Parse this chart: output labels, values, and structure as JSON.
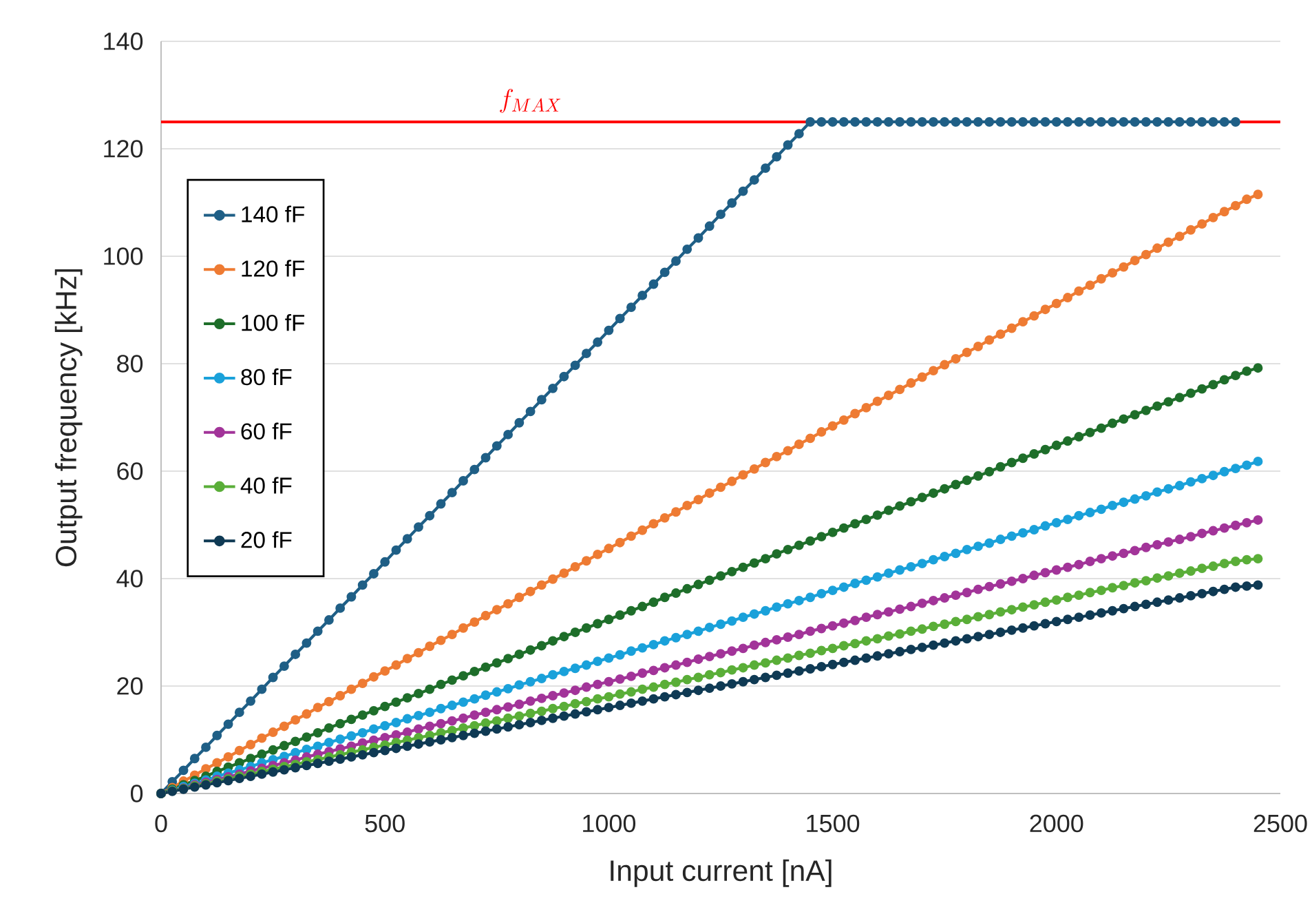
{
  "chart_data": {
    "type": "line",
    "xlabel": "Input current [nA]",
    "ylabel": "Output frequency [kHz]",
    "xlim": [
      0,
      2500
    ],
    "ylim": [
      0,
      140
    ],
    "xticks": [
      0,
      500,
      1000,
      1500,
      2000,
      2500
    ],
    "yticks": [
      0,
      20,
      40,
      60,
      80,
      100,
      120,
      140
    ],
    "grid": "y",
    "legend": "top left",
    "marker": "circle",
    "line_style": "solid",
    "ref_lines": [
      {
        "axis": "y",
        "value": 125,
        "label": "f_{MAX}",
        "color": "#ff0000"
      }
    ],
    "x": [
      0,
      25,
      50,
      75,
      100,
      125,
      150,
      175,
      200,
      225,
      250,
      275,
      300,
      325,
      350,
      375,
      400,
      425,
      450,
      475,
      500,
      525,
      550,
      575,
      600,
      625,
      650,
      675,
      700,
      725,
      750,
      775,
      800,
      825,
      850,
      875,
      900,
      925,
      950,
      975,
      1000,
      1025,
      1050,
      1075,
      1100,
      1125,
      1150,
      1175,
      1200,
      1225,
      1250,
      1275,
      1300,
      1325,
      1350,
      1375,
      1400,
      1425,
      1450,
      1475,
      1500,
      1525,
      1550,
      1575,
      1600,
      1625,
      1650,
      1675,
      1700,
      1725,
      1750,
      1775,
      1800,
      1825,
      1850,
      1875,
      1900,
      1925,
      1950,
      1975,
      2000,
      2025,
      2050,
      2075,
      2100,
      2125,
      2150,
      2175,
      2200,
      2225,
      2250,
      2275,
      2300,
      2325,
      2350,
      2375,
      2400,
      2425,
      2450
    ],
    "series": [
      {
        "name": "140 fF",
        "color": "#1f5f86",
        "x": [
          0,
          25,
          50,
          75,
          100,
          125,
          150,
          175,
          200,
          225,
          250,
          275,
          300,
          325,
          350,
          375,
          400,
          425,
          450,
          475,
          500,
          525,
          550,
          575,
          600,
          625,
          650,
          675,
          700,
          725,
          750,
          775,
          800,
          825,
          850,
          875,
          900,
          925,
          950,
          975,
          1000,
          1025,
          1050,
          1075,
          1100,
          1125,
          1150,
          1175,
          1200,
          1225,
          1250,
          1275,
          1300,
          1325,
          1350,
          1375,
          1400,
          1425,
          1450,
          1475,
          1500,
          1525,
          1550,
          1575,
          1600,
          1625,
          1650,
          1675,
          1700,
          1725,
          1750,
          1775,
          1800,
          1825,
          1850,
          1875,
          1900,
          1925,
          1950,
          1975,
          2000,
          2025,
          2050,
          2075,
          2100,
          2125,
          2150,
          2175,
          2200,
          2225,
          2250,
          2275,
          2300,
          2325,
          2350,
          2375,
          2400
        ],
        "values": [
          0,
          2.2,
          4.3,
          6.5,
          8.6,
          10.8,
          12.9,
          15.1,
          17.2,
          19.4,
          21.6,
          23.7,
          25.9,
          28.0,
          30.2,
          32.3,
          34.5,
          36.6,
          38.8,
          40.9,
          43.1,
          45.3,
          47.4,
          49.6,
          51.7,
          53.9,
          56.0,
          58.2,
          60.3,
          62.5,
          64.7,
          66.8,
          69.0,
          71.1,
          73.3,
          75.4,
          77.6,
          79.7,
          81.9,
          84.0,
          86.2,
          88.4,
          90.5,
          92.7,
          94.8,
          97.0,
          99.1,
          101.3,
          103.4,
          105.6,
          107.8,
          109.9,
          112.1,
          114.2,
          116.4,
          118.5,
          120.7,
          122.8,
          125,
          125,
          125,
          125,
          125,
          125,
          125,
          125,
          125,
          125,
          125,
          125,
          125,
          125,
          125,
          125,
          125,
          125,
          125,
          125,
          125,
          125,
          125,
          125,
          125,
          125,
          125,
          125,
          125,
          125,
          125,
          125,
          125,
          125,
          125,
          125,
          125,
          125,
          125
        ]
      },
      {
        "name": "120 fF",
        "color": "#ee7b33",
        "values": [
          0,
          1.1,
          2.3,
          3.4,
          4.6,
          5.7,
          6.8,
          8.0,
          9.1,
          10.3,
          11.4,
          12.5,
          13.7,
          14.8,
          16.0,
          17.1,
          18.2,
          19.4,
          20.5,
          21.7,
          22.8,
          23.9,
          25.1,
          26.2,
          27.4,
          28.5,
          29.6,
          30.8,
          31.9,
          33.1,
          34.2,
          35.3,
          36.5,
          37.6,
          38.8,
          39.9,
          41.0,
          42.2,
          43.3,
          44.5,
          45.6,
          46.7,
          47.9,
          49.0,
          50.2,
          51.3,
          52.4,
          53.6,
          54.7,
          55.9,
          57.0,
          58.1,
          59.3,
          60.4,
          61.6,
          62.7,
          63.8,
          65.0,
          66.1,
          67.3,
          68.4,
          69.5,
          70.7,
          71.8,
          73.0,
          74.1,
          75.2,
          76.4,
          77.5,
          78.7,
          79.8,
          80.9,
          82.1,
          83.2,
          84.4,
          85.5,
          86.6,
          87.8,
          88.9,
          90.1,
          91.2,
          92.3,
          93.5,
          94.6,
          95.8,
          96.9,
          98.0,
          99.2,
          100.3,
          101.5,
          102.6,
          103.7,
          104.9,
          106.0,
          107.2,
          108.3,
          109.4,
          110.6,
          111.5
        ]
      },
      {
        "name": "100 fF",
        "color": "#1e6e2a",
        "values": [
          0,
          0.8,
          1.6,
          2.4,
          3.2,
          4.1,
          4.9,
          5.7,
          6.5,
          7.3,
          8.1,
          8.9,
          9.7,
          10.5,
          11.3,
          12.2,
          13.0,
          13.8,
          14.6,
          15.4,
          16.2,
          17.0,
          17.8,
          18.6,
          19.4,
          20.3,
          21.1,
          21.9,
          22.7,
          23.5,
          24.3,
          25.1,
          25.9,
          26.7,
          27.5,
          28.4,
          29.2,
          30.0,
          30.8,
          31.6,
          32.4,
          33.2,
          34.0,
          34.8,
          35.6,
          36.5,
          37.3,
          38.1,
          38.9,
          39.7,
          40.5,
          41.3,
          42.1,
          42.9,
          43.7,
          44.6,
          45.4,
          46.2,
          47.0,
          47.8,
          48.6,
          49.4,
          50.2,
          51.0,
          51.8,
          52.7,
          53.5,
          54.3,
          55.1,
          55.9,
          56.7,
          57.5,
          58.3,
          59.1,
          59.9,
          60.8,
          61.6,
          62.4,
          63.2,
          64.0,
          64.8,
          65.6,
          66.4,
          67.2,
          68.0,
          68.9,
          69.7,
          70.5,
          71.3,
          72.1,
          72.9,
          73.7,
          74.5,
          75.3,
          76.1,
          77.0,
          77.8,
          78.6,
          79.2
        ]
      },
      {
        "name": "80 fF",
        "color": "#1aa1da",
        "values": [
          0,
          0.6,
          1.3,
          1.9,
          2.5,
          3.2,
          3.8,
          4.4,
          5.0,
          5.7,
          6.3,
          6.9,
          7.6,
          8.2,
          8.8,
          9.5,
          10.1,
          10.7,
          11.3,
          12.0,
          12.6,
          13.2,
          13.9,
          14.5,
          15.1,
          15.8,
          16.4,
          17.0,
          17.6,
          18.3,
          18.9,
          19.5,
          20.2,
          20.8,
          21.4,
          22.1,
          22.7,
          23.3,
          23.9,
          24.6,
          25.2,
          25.8,
          26.5,
          27.1,
          27.7,
          28.4,
          29.0,
          29.6,
          30.2,
          30.9,
          31.5,
          32.1,
          32.8,
          33.4,
          34.0,
          34.7,
          35.3,
          35.9,
          36.5,
          37.2,
          37.8,
          38.4,
          39.1,
          39.7,
          40.3,
          41.0,
          41.6,
          42.2,
          42.8,
          43.5,
          44.1,
          44.7,
          45.4,
          46.0,
          46.6,
          47.3,
          47.9,
          48.5,
          49.1,
          49.8,
          50.4,
          51.0,
          51.7,
          52.3,
          52.9,
          53.6,
          54.2,
          54.8,
          55.4,
          56.1,
          56.7,
          57.3,
          58.0,
          58.6,
          59.2,
          59.9,
          60.5,
          61.1,
          61.8
        ]
      },
      {
        "name": "60 fF",
        "color": "#a23499",
        "values": [
          0,
          0.5,
          1.0,
          1.6,
          2.1,
          2.6,
          3.1,
          3.6,
          4.2,
          4.7,
          5.2,
          5.7,
          6.2,
          6.8,
          7.3,
          7.8,
          8.3,
          8.8,
          9.4,
          9.9,
          10.4,
          10.9,
          11.4,
          12.0,
          12.5,
          13.0,
          13.5,
          14.0,
          14.6,
          15.1,
          15.6,
          16.1,
          16.6,
          17.2,
          17.7,
          18.2,
          18.7,
          19.2,
          19.8,
          20.3,
          20.8,
          21.3,
          21.8,
          22.4,
          22.9,
          23.4,
          23.9,
          24.4,
          25.0,
          25.5,
          26.0,
          26.5,
          27.0,
          27.6,
          28.1,
          28.6,
          29.1,
          29.6,
          30.2,
          30.7,
          31.2,
          31.7,
          32.2,
          32.8,
          33.3,
          33.8,
          34.3,
          34.8,
          35.4,
          35.9,
          36.4,
          36.9,
          37.4,
          38.0,
          38.5,
          39.0,
          39.5,
          40.0,
          40.6,
          41.1,
          41.6,
          42.1,
          42.6,
          43.2,
          43.7,
          44.2,
          44.7,
          45.2,
          45.8,
          46.3,
          46.8,
          47.3,
          47.8,
          48.4,
          48.9,
          49.4,
          49.9,
          50.4,
          50.9
        ]
      },
      {
        "name": "40 fF",
        "color": "#5aae38",
        "values": [
          0,
          0.5,
          0.9,
          1.4,
          1.8,
          2.3,
          2.7,
          3.2,
          3.6,
          4.1,
          4.5,
          5.0,
          5.4,
          5.9,
          6.3,
          6.8,
          7.2,
          7.7,
          8.1,
          8.6,
          9.0,
          9.5,
          9.9,
          10.4,
          10.8,
          11.3,
          11.7,
          12.2,
          12.6,
          13.1,
          13.5,
          14.0,
          14.4,
          14.9,
          15.3,
          15.8,
          16.2,
          16.7,
          17.1,
          17.6,
          18.0,
          18.5,
          18.9,
          19.4,
          19.8,
          20.3,
          20.7,
          21.2,
          21.6,
          22.1,
          22.5,
          23.0,
          23.4,
          23.9,
          24.3,
          24.8,
          25.2,
          25.7,
          26.1,
          26.6,
          27.0,
          27.5,
          27.9,
          28.4,
          28.8,
          29.3,
          29.7,
          30.2,
          30.6,
          31.1,
          31.5,
          32.0,
          32.4,
          32.9,
          33.3,
          33.8,
          34.2,
          34.7,
          35.1,
          35.6,
          36.0,
          36.5,
          36.9,
          37.4,
          37.8,
          38.3,
          38.7,
          39.2,
          39.6,
          40.1,
          40.5,
          41.0,
          41.4,
          41.9,
          42.3,
          42.8,
          43.2,
          43.5,
          43.7
        ]
      },
      {
        "name": "20 fF",
        "color": "#0f3a54",
        "values": [
          0,
          0.4,
          0.8,
          1.2,
          1.6,
          2.0,
          2.4,
          2.8,
          3.2,
          3.6,
          4.0,
          4.4,
          4.8,
          5.2,
          5.6,
          6.0,
          6.4,
          6.8,
          7.2,
          7.6,
          8.0,
          8.4,
          8.8,
          9.2,
          9.6,
          10.0,
          10.4,
          10.8,
          11.2,
          11.6,
          12.0,
          12.4,
          12.8,
          13.2,
          13.6,
          14.0,
          14.4,
          14.8,
          15.2,
          15.6,
          16.0,
          16.4,
          16.8,
          17.2,
          17.6,
          18.0,
          18.4,
          18.8,
          19.2,
          19.6,
          20.0,
          20.4,
          20.8,
          21.2,
          21.6,
          22.0,
          22.4,
          22.8,
          23.2,
          23.6,
          24.0,
          24.4,
          24.8,
          25.2,
          25.6,
          26.0,
          26.4,
          26.8,
          27.2,
          27.6,
          28.0,
          28.4,
          28.8,
          29.2,
          29.6,
          30.0,
          30.4,
          30.8,
          31.2,
          31.6,
          32.0,
          32.4,
          32.8,
          33.2,
          33.6,
          34.0,
          34.4,
          34.8,
          35.2,
          35.6,
          36.0,
          36.4,
          36.8,
          37.2,
          37.6,
          38.0,
          38.4,
          38.6,
          38.8
        ]
      }
    ]
  }
}
